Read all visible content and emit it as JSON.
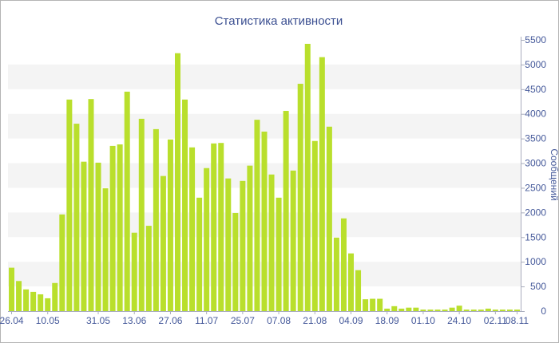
{
  "chart_data": {
    "type": "bar",
    "title": "Статистика активности",
    "xlabel": "",
    "ylabel": "Сообщений",
    "y_axis_side": "right",
    "ylim": [
      0,
      5500
    ],
    "y_ticks": [
      0,
      500,
      1000,
      1500,
      2000,
      2500,
      3000,
      3500,
      4000,
      4500,
      5000,
      5500
    ],
    "grid": true,
    "categories": [
      "26.04",
      "",
      "",
      "",
      "",
      "10.05",
      "",
      "",
      "",
      "",
      "",
      "",
      "31.05",
      "",
      "",
      "",
      "",
      "13.06",
      "",
      "",
      "",
      "",
      "27.06",
      "",
      "",
      "",
      "",
      "11.07",
      "",
      "",
      "",
      "",
      "25.07",
      "",
      "",
      "",
      "",
      "07.08",
      "",
      "",
      "",
      "",
      "21.08",
      "",
      "",
      "",
      "",
      "04.09",
      "",
      "",
      "",
      "",
      "18.09",
      "",
      "",
      "",
      "",
      "01.10",
      "",
      "",
      "",
      "",
      "24.10",
      "",
      "",
      "",
      "",
      "02.11",
      "",
      "",
      "08.11"
    ],
    "values": [
      880,
      610,
      440,
      390,
      340,
      260,
      570,
      1960,
      4290,
      3800,
      3030,
      4300,
      3010,
      2490,
      3350,
      3380,
      4450,
      1590,
      3900,
      1730,
      3690,
      2740,
      3480,
      5230,
      4290,
      3320,
      2300,
      2900,
      3400,
      3410,
      2690,
      1990,
      2640,
      2950,
      3880,
      3640,
      2770,
      2300,
      4060,
      2850,
      4610,
      5420,
      3450,
      5150,
      3740,
      1490,
      1880,
      1170,
      830,
      240,
      250,
      250,
      50,
      100,
      50,
      70,
      70,
      30,
      30,
      30,
      30,
      70,
      110,
      30,
      30,
      30,
      50,
      30,
      30,
      30,
      30
    ]
  },
  "colors": {
    "bar": "#b9df2c",
    "title": "#3b4f91",
    "tick_text": "#45599a",
    "band": "#f4f4f4",
    "axis": "#a9adbd",
    "border": "#b4b4b4"
  }
}
